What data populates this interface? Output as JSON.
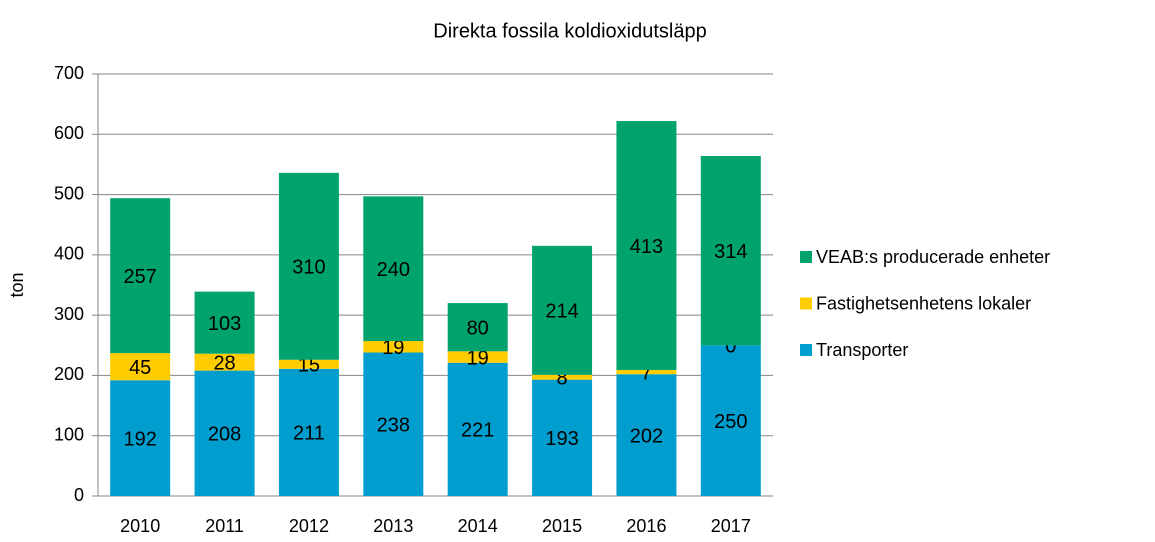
{
  "chart_data": {
    "type": "stacked_bar",
    "title": "Direkta fossila koldioxidutsläpp",
    "y_label": "ton",
    "categories": [
      "2010",
      "2011",
      "2012",
      "2013",
      "2014",
      "2015",
      "2016",
      "2017"
    ],
    "series": [
      {
        "name": "Transporter",
        "color": "#009ece",
        "values": [
          192,
          208,
          211,
          238,
          221,
          193,
          202,
          250
        ]
      },
      {
        "name": "Fastighetsenhetens lokaler",
        "color": "#ffcc00",
        "values": [
          45,
          28,
          15,
          19,
          19,
          8,
          7,
          0
        ]
      },
      {
        "name": "VEAB:s producerade enheter",
        "color": "#00a36e",
        "values": [
          257,
          103,
          310,
          240,
          80,
          214,
          413,
          314
        ]
      }
    ],
    "ylim": [
      0,
      700
    ],
    "yticks": [
      0,
      100,
      200,
      300,
      400,
      500,
      600,
      700
    ],
    "grid": true,
    "legend": "right"
  }
}
